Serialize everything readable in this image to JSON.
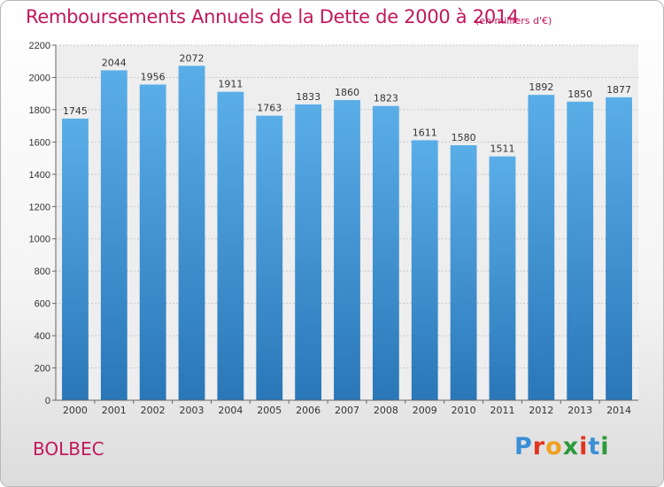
{
  "header": {
    "title": "Remboursements Annuels de la Dette de 2000 à 2014",
    "unit": "(en milliers d'€)"
  },
  "footer": {
    "city": "BOLBEC",
    "logo": "Proxiti"
  },
  "colors": {
    "accent": "#c2185b",
    "bar_top": "#5aaee8",
    "bar_bottom": "#2a77b8"
  },
  "chart_data": {
    "type": "bar",
    "categories": [
      "2000",
      "2001",
      "2002",
      "2003",
      "2004",
      "2005",
      "2006",
      "2007",
      "2008",
      "2009",
      "2010",
      "2011",
      "2012",
      "2013",
      "2014"
    ],
    "values": [
      1745,
      2044,
      1956,
      2072,
      1911,
      1763,
      1833,
      1860,
      1823,
      1611,
      1580,
      1511,
      1892,
      1850,
      1877
    ],
    "ylim": [
      0,
      2200
    ],
    "yticks": [
      0,
      200,
      400,
      600,
      800,
      1000,
      1200,
      1400,
      1600,
      1800,
      2000,
      2200
    ],
    "grid": true,
    "data_labels": true
  }
}
